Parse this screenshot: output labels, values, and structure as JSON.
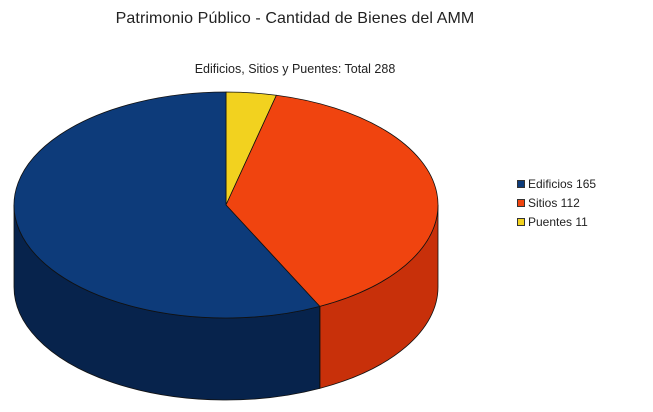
{
  "chart_data": {
    "type": "pie",
    "title": "Patrimonio Público - Cantidad de Bienes del AMM",
    "subtitle": "Edificios, Sitios y Puentes: Total 288",
    "categories": [
      "Edificios",
      "Sitios",
      "Puentes"
    ],
    "values": [
      165,
      112,
      11
    ],
    "legend_labels": [
      "Edificios 165",
      "Sitios 112",
      "Puentes 11"
    ],
    "colors": [
      "#0d3b7a",
      "#f0440f",
      "#f2d21f"
    ],
    "side_colors": [
      "#07234c",
      "#c8300a",
      "#b89b10"
    ],
    "legend_position": "right",
    "style": "3d"
  }
}
